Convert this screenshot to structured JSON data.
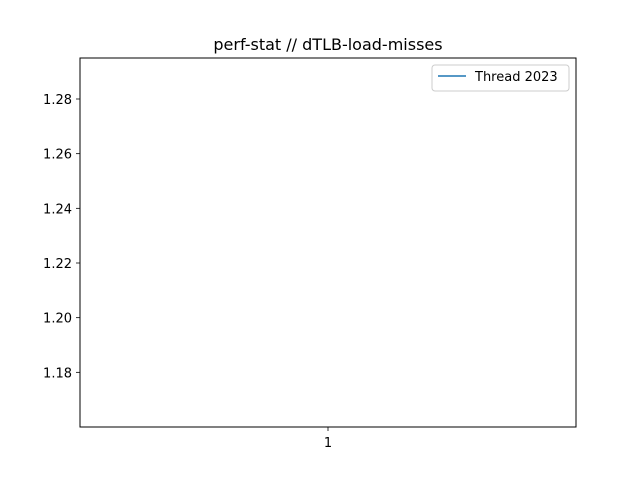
{
  "chart_data": {
    "type": "line",
    "title": "perf-stat // dTLB-load-misses",
    "xlabel": "",
    "ylabel": "",
    "x": [
      1
    ],
    "series": [
      {
        "name": "Thread 2023",
        "values": [
          null
        ]
      }
    ],
    "xticks": [
      "1"
    ],
    "yticks": [
      "1.18",
      "1.20",
      "1.22",
      "1.24",
      "1.26",
      "1.28"
    ],
    "ylim": [
      1.16,
      1.295
    ],
    "xlim": [
      0.945,
      1.055
    ],
    "grid": false,
    "legend_position": "top-right",
    "colors": {
      "series": "#1f77b4",
      "axes": "#000000",
      "background": "#ffffff"
    }
  }
}
